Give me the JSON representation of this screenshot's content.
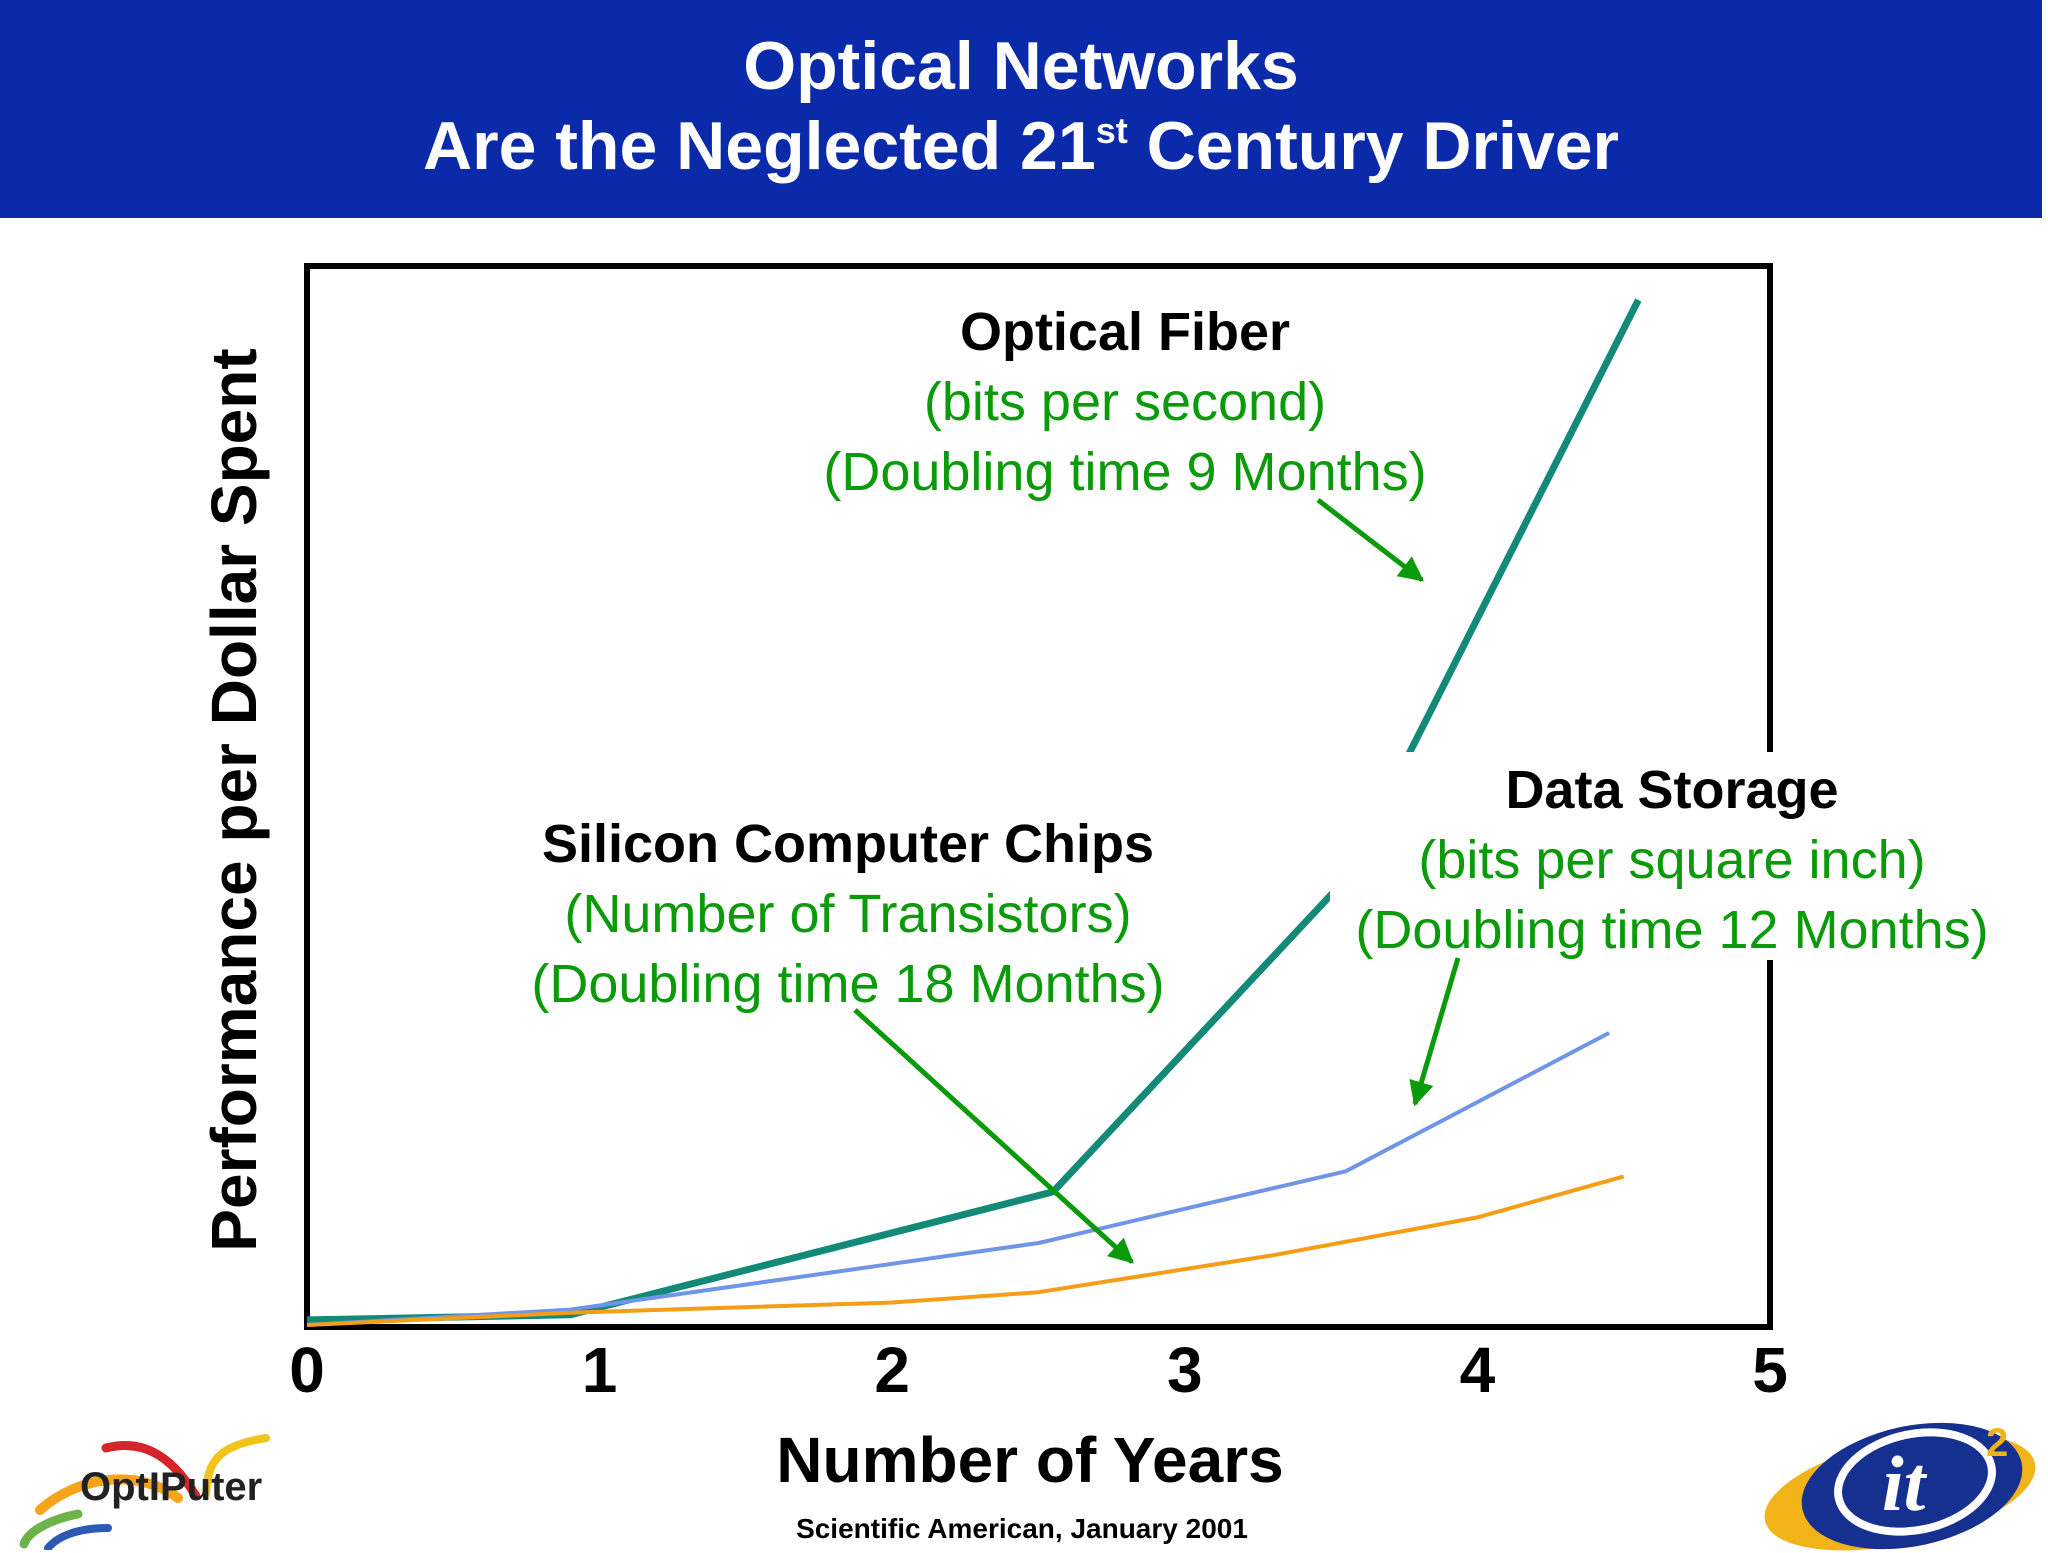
{
  "header": {
    "title_line1": "Optical Networks",
    "title_line2_prefix": "Are the Neglected 21",
    "title_line2_sup": "st",
    "title_line2_suffix": " Century Driver"
  },
  "source_note": "Scientific American, January 2001",
  "logos": {
    "left": "OptIPuter",
    "right": "it2"
  },
  "colors": {
    "header_bg": "#0a2aaa",
    "annotation_green": "#0a9a0a",
    "optical_fiber": "#138a78",
    "data_storage": "#6f95e8",
    "silicon_chips": "#f59d16"
  },
  "chart_data": {
    "type": "line",
    "xlabel": "Number of Years",
    "ylabel": "Performance per Dollar Spent",
    "xlim": [
      0,
      5
    ],
    "x_ticks": [
      "0",
      "1",
      "2",
      "3",
      "4",
      "5"
    ],
    "ylim": [
      0,
      100
    ],
    "grid": false,
    "series": [
      {
        "key": "optical",
        "name": "Optical Fiber",
        "x": [
          0,
          0.9,
          2.55,
          3.55,
          4.55
        ],
        "values": [
          0.5,
          1,
          13,
          43.5,
          100
        ]
      },
      {
        "key": "storage",
        "name": "Data Storage",
        "x": [
          0,
          0.9,
          2.5,
          3.55,
          4.45
        ],
        "values": [
          0,
          1.5,
          8,
          15,
          28.5
        ]
      },
      {
        "key": "silicon",
        "name": "Silicon Computer Chips",
        "x": [
          0,
          0.9,
          2.0,
          2.5,
          3.3,
          4.0,
          4.5
        ],
        "values": [
          0,
          1.2,
          2.2,
          3.2,
          6.8,
          10.5,
          14.5
        ]
      }
    ],
    "annotations": [
      {
        "key": "optical",
        "title": "Optical Fiber",
        "line1": "(bits per second)",
        "line2": "(Doubling time 9 Months)"
      },
      {
        "key": "storage",
        "title": "Data Storage",
        "line1": "(bits per square inch)",
        "line2": "(Doubling time 12 Months)"
      },
      {
        "key": "silicon",
        "title": "Silicon Computer Chips",
        "line1": "(Number of Transistors)",
        "line2": "(Doubling time 18 Months)"
      }
    ]
  }
}
